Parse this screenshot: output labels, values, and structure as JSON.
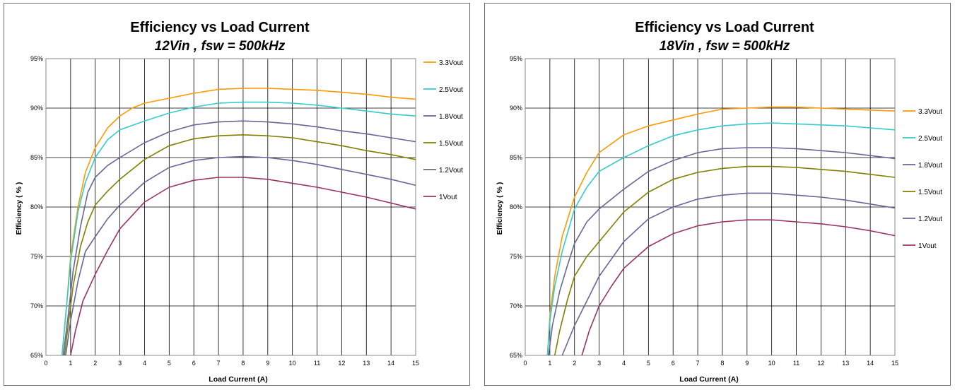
{
  "chart_data": [
    {
      "type": "line",
      "title": "Efficiency vs Load Current",
      "subtitle": "12Vin , fsw = 500kHz",
      "xlabel": "Load Current (A)",
      "ylabel": "Efficiency ( % )",
      "xlim": [
        0,
        15
      ],
      "ylim": [
        65,
        95
      ],
      "x_ticks": [
        "0",
        "1",
        "2",
        "3",
        "4",
        "5",
        "6",
        "7",
        "8",
        "9",
        "10",
        "11",
        "12",
        "13",
        "14",
        "15"
      ],
      "y_ticks": [
        "65%",
        "70%",
        "75%",
        "80%",
        "85%",
        "90%",
        "95%"
      ],
      "grid": "on",
      "legend_position": "right",
      "series": [
        {
          "name": "3.3Vout",
          "color": "#ff9900",
          "points": [
            [
              0.65,
              65
            ],
            [
              0.8,
              69
            ],
            [
              1,
              75
            ],
            [
              1.3,
              80
            ],
            [
              1.6,
              83.5
            ],
            [
              2,
              86
            ],
            [
              2.5,
              88
            ],
            [
              3,
              89.2
            ],
            [
              3.5,
              90
            ],
            [
              4,
              90.5
            ],
            [
              5,
              91
            ],
            [
              6,
              91.5
            ],
            [
              7,
              91.9
            ],
            [
              8,
              92.0
            ],
            [
              9,
              92.0
            ],
            [
              10,
              91.9
            ],
            [
              11,
              91.8
            ],
            [
              12,
              91.6
            ],
            [
              13,
              91.4
            ],
            [
              14,
              91.1
            ],
            [
              15,
              90.9
            ]
          ]
        },
        {
          "name": "2.5Vout",
          "color": "#33cccc",
          "points": [
            [
              0.65,
              65
            ],
            [
              0.8,
              69
            ],
            [
              1,
              74.5
            ],
            [
              1.3,
              79.5
            ],
            [
              1.6,
              82.5
            ],
            [
              2,
              85
            ],
            [
              2.5,
              86.8
            ],
            [
              3,
              87.8
            ],
            [
              4,
              88.7
            ],
            [
              5,
              89.5
            ],
            [
              6,
              90.1
            ],
            [
              7,
              90.5
            ],
            [
              8,
              90.6
            ],
            [
              9,
              90.6
            ],
            [
              10,
              90.5
            ],
            [
              11,
              90.3
            ],
            [
              12,
              90.0
            ],
            [
              13,
              89.7
            ],
            [
              14,
              89.4
            ],
            [
              15,
              89.2
            ]
          ]
        },
        {
          "name": "1.8Vout",
          "color": "#666699",
          "points": [
            [
              0.7,
              65
            ],
            [
              0.9,
              69
            ],
            [
              1.1,
              73.5
            ],
            [
              1.4,
              78
            ],
            [
              1.7,
              81.5
            ],
            [
              2,
              83
            ],
            [
              2.5,
              84.2
            ],
            [
              3,
              85
            ],
            [
              4,
              86.5
            ],
            [
              5,
              87.6
            ],
            [
              6,
              88.3
            ],
            [
              7,
              88.6
            ],
            [
              8,
              88.7
            ],
            [
              9,
              88.6
            ],
            [
              10,
              88.4
            ],
            [
              11,
              88.1
            ],
            [
              12,
              87.7
            ],
            [
              13,
              87.4
            ],
            [
              14,
              87.0
            ],
            [
              15,
              86.6
            ]
          ]
        },
        {
          "name": "1.5Vout",
          "color": "#808000",
          "points": [
            [
              0.75,
              65
            ],
            [
              0.9,
              68
            ],
            [
              1.1,
              72
            ],
            [
              1.4,
              76
            ],
            [
              1.7,
              78.5
            ],
            [
              2,
              80.2
            ],
            [
              2.5,
              81.6
            ],
            [
              3,
              82.8
            ],
            [
              4,
              84.8
            ],
            [
              5,
              86.2
            ],
            [
              6,
              86.9
            ],
            [
              7,
              87.2
            ],
            [
              8,
              87.3
            ],
            [
              9,
              87.2
            ],
            [
              10,
              87.0
            ],
            [
              11,
              86.6
            ],
            [
              12,
              86.2
            ],
            [
              13,
              85.7
            ],
            [
              14,
              85.3
            ],
            [
              15,
              84.8
            ]
          ]
        },
        {
          "name": "1.2Vout",
          "color": "#666699",
          "points": [
            [
              0.8,
              65
            ],
            [
              1,
              68.5
            ],
            [
              1.3,
              72.5
            ],
            [
              1.6,
              75.5
            ],
            [
              2,
              77
            ],
            [
              2.5,
              78.8
            ],
            [
              3,
              80.2
            ],
            [
              4,
              82.5
            ],
            [
              5,
              84
            ],
            [
              6,
              84.7
            ],
            [
              7,
              85.0
            ],
            [
              8,
              85.1
            ],
            [
              9,
              85.0
            ],
            [
              10,
              84.7
            ],
            [
              11,
              84.3
            ],
            [
              12,
              83.8
            ],
            [
              13,
              83.3
            ],
            [
              14,
              82.8
            ],
            [
              15,
              82.2
            ]
          ]
        },
        {
          "name": "1Vout",
          "color": "#993366",
          "points": [
            [
              1,
              65
            ],
            [
              1.2,
              67.5
            ],
            [
              1.5,
              70.5
            ],
            [
              2,
              73.2
            ],
            [
              2.5,
              75.6
            ],
            [
              3,
              77.8
            ],
            [
              4,
              80.5
            ],
            [
              5,
              82
            ],
            [
              6,
              82.7
            ],
            [
              7,
              83.0
            ],
            [
              8,
              83.0
            ],
            [
              9,
              82.8
            ],
            [
              10,
              82.4
            ],
            [
              11,
              82.0
            ],
            [
              12,
              81.5
            ],
            [
              13,
              81.0
            ],
            [
              14,
              80.4
            ],
            [
              15,
              79.8
            ]
          ]
        }
      ]
    },
    {
      "type": "line",
      "title": "Efficiency vs Load Current",
      "subtitle": "18Vin , fsw = 500kHz",
      "xlabel": "Load Current (A)",
      "ylabel": "Efficiency ( % )",
      "xlim": [
        0,
        15
      ],
      "ylim": [
        65,
        95
      ],
      "x_ticks": [
        "0",
        "1",
        "2",
        "3",
        "4",
        "5",
        "6",
        "7",
        "8",
        "9",
        "10",
        "11",
        "12",
        "13",
        "14",
        "15"
      ],
      "y_ticks": [
        "65%",
        "70%",
        "75%",
        "80%",
        "85%",
        "90%",
        "95%"
      ],
      "grid": "on",
      "legend_position": "right",
      "series": [
        {
          "name": "3.3Vout",
          "color": "#ff9900",
          "points": [
            [
              0.9,
              65
            ],
            [
              1,
              69
            ],
            [
              1.2,
              73
            ],
            [
              1.5,
              77
            ],
            [
              2,
              81
            ],
            [
              2.5,
              83.5
            ],
            [
              3,
              85.5
            ],
            [
              4,
              87.3
            ],
            [
              5,
              88.2
            ],
            [
              6,
              88.8
            ],
            [
              7,
              89.4
            ],
            [
              8,
              89.9
            ],
            [
              9,
              90.0
            ],
            [
              10,
              90.1
            ],
            [
              11,
              90.1
            ],
            [
              12,
              90.0
            ],
            [
              13,
              89.9
            ],
            [
              14,
              89.8
            ],
            [
              15,
              89.7
            ]
          ]
        },
        {
          "name": "2.5Vout",
          "color": "#33cccc",
          "points": [
            [
              0.9,
              65
            ],
            [
              1,
              68.5
            ],
            [
              1.2,
              72
            ],
            [
              1.5,
              75.5
            ],
            [
              2,
              79.8
            ],
            [
              2.5,
              82
            ],
            [
              3,
              83.6
            ],
            [
              4,
              85
            ],
            [
              5,
              86.2
            ],
            [
              6,
              87.2
            ],
            [
              7,
              87.8
            ],
            [
              8,
              88.2
            ],
            [
              9,
              88.4
            ],
            [
              10,
              88.5
            ],
            [
              11,
              88.4
            ],
            [
              12,
              88.3
            ],
            [
              13,
              88.2
            ],
            [
              14,
              88.0
            ],
            [
              15,
              87.8
            ]
          ]
        },
        {
          "name": "1.8Vout",
          "color": "#666699",
          "points": [
            [
              0.95,
              65
            ],
            [
              1.1,
              68
            ],
            [
              1.4,
              71.5
            ],
            [
              1.7,
              74
            ],
            [
              2,
              76.3
            ],
            [
              2.5,
              78.5
            ],
            [
              3,
              79.8
            ],
            [
              4,
              81.8
            ],
            [
              5,
              83.6
            ],
            [
              6,
              84.7
            ],
            [
              7,
              85.5
            ],
            [
              8,
              85.9
            ],
            [
              9,
              86.0
            ],
            [
              10,
              86.0
            ],
            [
              11,
              85.9
            ],
            [
              12,
              85.7
            ],
            [
              13,
              85.5
            ],
            [
              14,
              85.2
            ],
            [
              15,
              84.9
            ]
          ]
        },
        {
          "name": "1.5Vout",
          "color": "#808000",
          "points": [
            [
              1.2,
              65
            ],
            [
              1.4,
              67.5
            ],
            [
              1.7,
              70.5
            ],
            [
              2,
              73
            ],
            [
              2.5,
              75
            ],
            [
              3,
              76.5
            ],
            [
              4,
              79.5
            ],
            [
              5,
              81.5
            ],
            [
              6,
              82.8
            ],
            [
              7,
              83.5
            ],
            [
              8,
              83.9
            ],
            [
              9,
              84.1
            ],
            [
              10,
              84.1
            ],
            [
              11,
              84.0
            ],
            [
              12,
              83.8
            ],
            [
              13,
              83.6
            ],
            [
              14,
              83.3
            ],
            [
              15,
              83.0
            ]
          ]
        },
        {
          "name": "1.2Vout",
          "color": "#666699",
          "points": [
            [
              1.5,
              65
            ],
            [
              2,
              68
            ],
            [
              2.5,
              70.5
            ],
            [
              3,
              73
            ],
            [
              4,
              76.5
            ],
            [
              5,
              78.8
            ],
            [
              6,
              80
            ],
            [
              7,
              80.8
            ],
            [
              8,
              81.2
            ],
            [
              9,
              81.4
            ],
            [
              10,
              81.4
            ],
            [
              11,
              81.2
            ],
            [
              12,
              81.0
            ],
            [
              13,
              80.7
            ],
            [
              14,
              80.3
            ],
            [
              15,
              79.9
            ]
          ]
        },
        {
          "name": "1Vout",
          "color": "#993366",
          "points": [
            [
              2.3,
              65
            ],
            [
              2.6,
              67.5
            ],
            [
              3,
              70
            ],
            [
              3.5,
              72
            ],
            [
              4,
              73.8
            ],
            [
              5,
              76
            ],
            [
              6,
              77.3
            ],
            [
              7,
              78.1
            ],
            [
              8,
              78.5
            ],
            [
              9,
              78.7
            ],
            [
              10,
              78.7
            ],
            [
              11,
              78.5
            ],
            [
              12,
              78.3
            ],
            [
              13,
              78.0
            ],
            [
              14,
              77.6
            ],
            [
              15,
              77.1
            ]
          ]
        }
      ]
    }
  ]
}
